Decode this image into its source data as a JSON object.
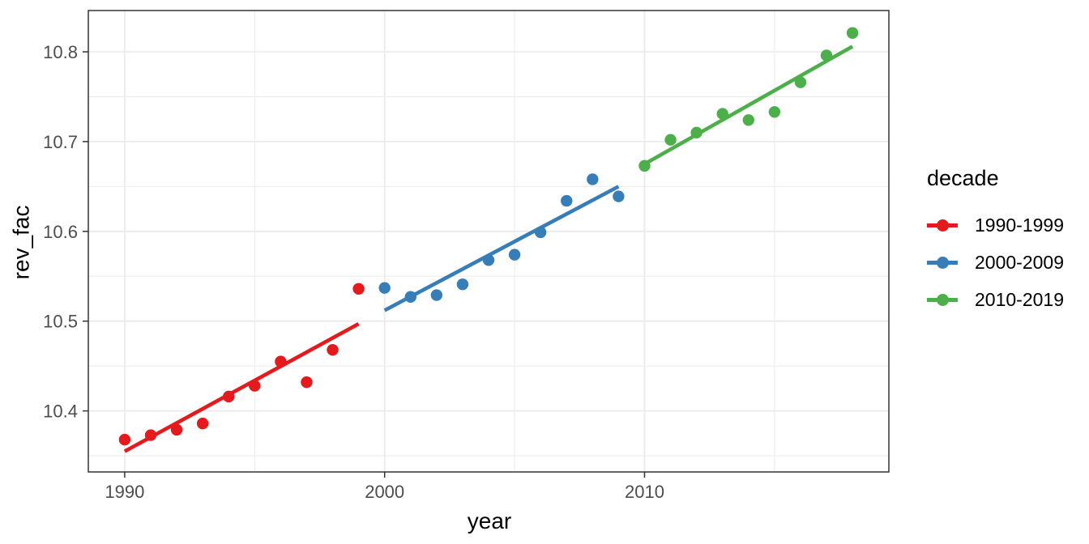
{
  "chart_data": {
    "type": "scatter",
    "title": "",
    "xlabel": "year",
    "ylabel": "rev_fac",
    "xlim": [
      1988.6,
      2019.4
    ],
    "ylim": [
      10.332,
      10.846
    ],
    "x_major_ticks": [
      1990,
      2000,
      2010
    ],
    "x_tick_labels": [
      "1990",
      "2000",
      "2010"
    ],
    "x_minor_ticks": [
      1995,
      2005,
      2015
    ],
    "y_major_ticks": [
      10.4,
      10.5,
      10.6,
      10.7,
      10.8
    ],
    "y_tick_labels": [
      "10.4",
      "10.5",
      "10.6",
      "10.7",
      "10.8"
    ],
    "y_minor_ticks": [
      10.35,
      10.45,
      10.55,
      10.65,
      10.75
    ],
    "grid": true,
    "legend": {
      "title": "decade",
      "position": "right"
    },
    "series": [
      {
        "name": "1990-1999",
        "color": "#E41A1C",
        "x": [
          1990,
          1991,
          1992,
          1993,
          1994,
          1995,
          1996,
          1997,
          1998,
          1999
        ],
        "y": [
          10.368,
          10.373,
          10.379,
          10.386,
          10.416,
          10.428,
          10.455,
          10.432,
          10.468,
          10.536
        ],
        "trend": {
          "x": [
            1990,
            1999
          ],
          "y": [
            10.355,
            10.497
          ]
        }
      },
      {
        "name": "2000-2009",
        "color": "#377EB8",
        "x": [
          2000,
          2001,
          2002,
          2003,
          2004,
          2005,
          2006,
          2007,
          2008,
          2009
        ],
        "y": [
          10.537,
          10.527,
          10.529,
          10.541,
          10.568,
          10.574,
          10.599,
          10.634,
          10.658,
          10.639
        ],
        "trend": {
          "x": [
            2000,
            2009
          ],
          "y": [
            10.512,
            10.65
          ]
        }
      },
      {
        "name": "2010-2019",
        "color": "#4DAF4A",
        "x": [
          2010,
          2011,
          2012,
          2013,
          2014,
          2015,
          2016,
          2017,
          2018
        ],
        "y": [
          10.673,
          10.702,
          10.71,
          10.731,
          10.724,
          10.733,
          10.766,
          10.796,
          10.821
        ],
        "trend": {
          "x": [
            2010,
            2018
          ],
          "y": [
            10.675,
            10.806
          ]
        }
      }
    ]
  },
  "colors": {
    "background": "#FFFFFF",
    "grid": "#EBEBEB",
    "panel_border": "#333333",
    "tick_mark": "#333333",
    "tick_label": "#4D4D4D",
    "axis_title": "#000000"
  }
}
